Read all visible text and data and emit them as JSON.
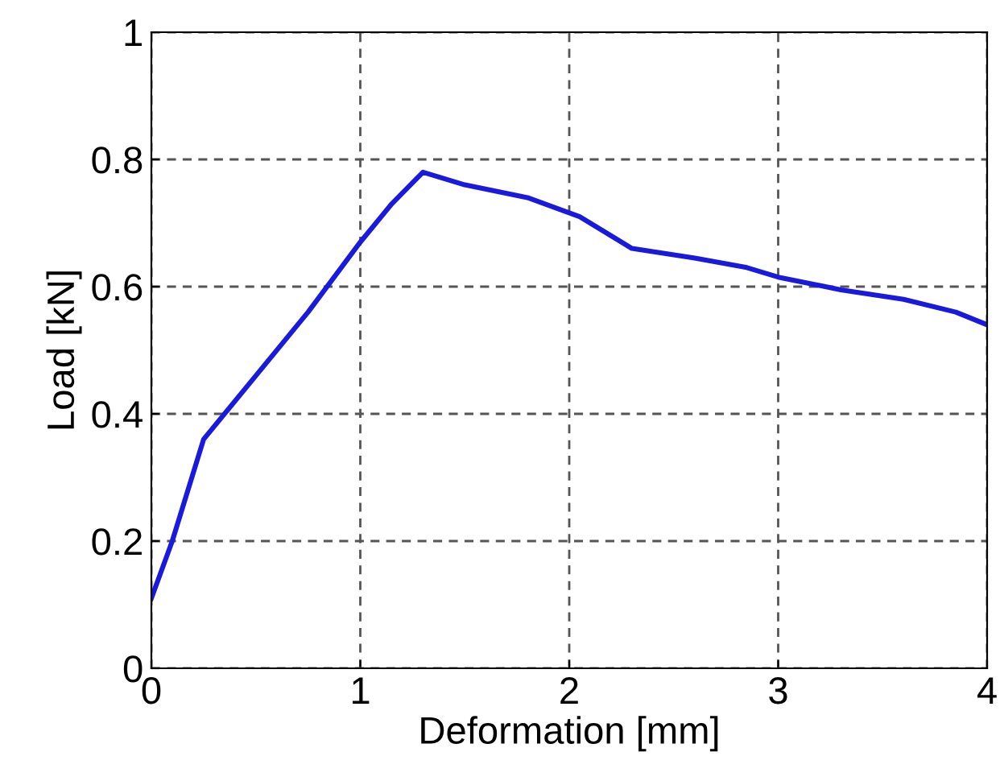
{
  "chart_data": {
    "type": "line",
    "xlabel": "Deformation [mm]",
    "ylabel": "Load [kN]",
    "x": [
      0,
      0.1,
      0.25,
      0.5,
      0.75,
      1.0,
      1.15,
      1.3,
      1.5,
      1.8,
      2.05,
      2.3,
      2.6,
      2.85,
      3.0,
      3.3,
      3.6,
      3.85,
      4.0
    ],
    "series": [
      {
        "color": "#1a1adc",
        "values": [
          0.11,
          0.2,
          0.36,
          0.46,
          0.56,
          0.67,
          0.73,
          0.78,
          0.76,
          0.74,
          0.71,
          0.66,
          0.645,
          0.63,
          0.615,
          0.595,
          0.58,
          0.56,
          0.54
        ]
      }
    ],
    "xlim": [
      0,
      4
    ],
    "ylim": [
      0,
      1
    ],
    "xticks": [
      0,
      1,
      2,
      3,
      4
    ],
    "yticks": [
      0,
      0.2,
      0.4,
      0.6,
      0.8,
      1
    ],
    "grid": true,
    "line_style": "solid",
    "marker": "none"
  }
}
